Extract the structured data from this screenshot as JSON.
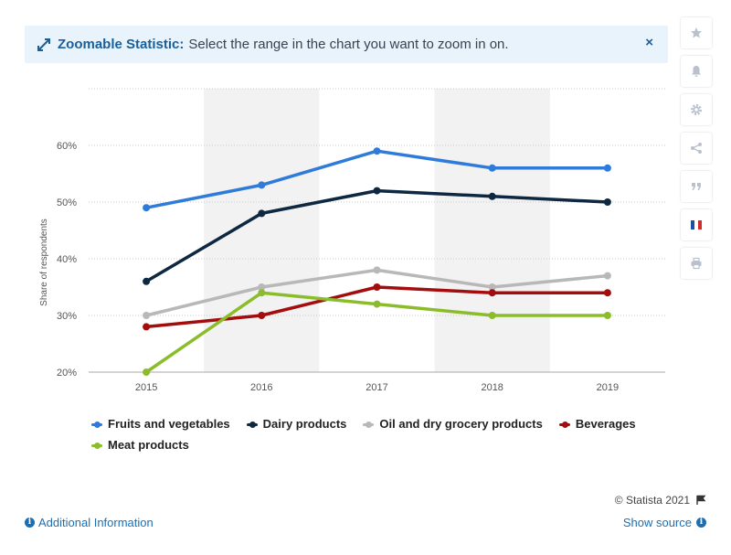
{
  "banner": {
    "title": "Zoomable Statistic:",
    "text": "Select the range in the chart you want to zoom in on.",
    "close_label": "×"
  },
  "toolbar": {
    "items": [
      "star-icon",
      "bell-icon",
      "gear-icon",
      "share-icon",
      "quote-icon",
      "flag-fr-icon",
      "print-icon"
    ]
  },
  "colors": {
    "accent": "#1a6fb4",
    "banner_bg": "#e8f3fb"
  },
  "chart_data": {
    "type": "line",
    "title": "",
    "xlabel": "",
    "ylabel": "Share of respondents",
    "x": [
      "2015",
      "2016",
      "2017",
      "2018",
      "2019"
    ],
    "ylim": [
      20,
      70
    ],
    "yticks": [
      20,
      30,
      40,
      50,
      60
    ],
    "ytick_labels": [
      "20%",
      "30%",
      "40%",
      "50%",
      "60%"
    ],
    "grid": true,
    "legend_position": "bottom",
    "series": [
      {
        "name": "Fruits and vegetables",
        "color": "#2f7bd9",
        "values": [
          49,
          53,
          59,
          56,
          56
        ]
      },
      {
        "name": "Dairy products",
        "color": "#0d2840",
        "values": [
          36,
          48,
          52,
          51,
          50
        ]
      },
      {
        "name": "Oil and dry grocery products",
        "color": "#b8b8b8",
        "values": [
          30,
          35,
          38,
          35,
          37
        ]
      },
      {
        "name": "Beverages",
        "color": "#a30d0d",
        "values": [
          28,
          30,
          35,
          34,
          34
        ]
      },
      {
        "name": "Meat products",
        "color": "#8bbd2b",
        "values": [
          20,
          34,
          32,
          30,
          30
        ]
      }
    ]
  },
  "credit": "© Statista 2021",
  "footer": {
    "additional_info": "Additional Information",
    "show_source": "Show source"
  }
}
